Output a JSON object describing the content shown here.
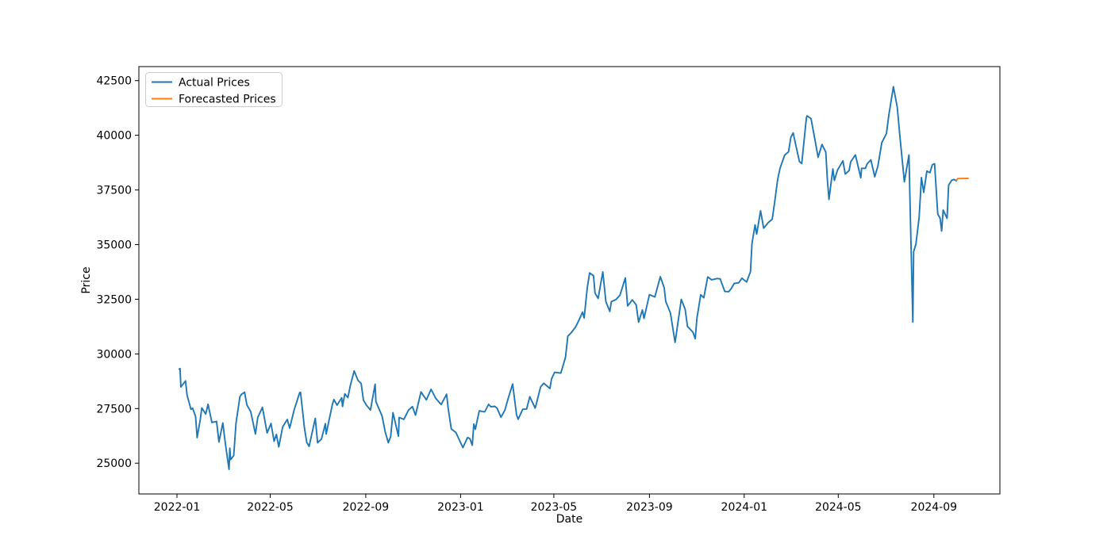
{
  "chart_data": {
    "type": "line",
    "title": "",
    "xlabel": "Date",
    "ylabel": "Price",
    "grid": false,
    "x_tick_labels": [
      "2022-01",
      "2022-05",
      "2022-09",
      "2023-01",
      "2023-05",
      "2023-09",
      "2024-01",
      "2024-05",
      "2024-09"
    ],
    "x_tick_dates": [
      "2022-01-01",
      "2022-05-01",
      "2022-09-01",
      "2023-01-01",
      "2023-05-01",
      "2023-09-01",
      "2024-01-01",
      "2024-05-01",
      "2024-09-01"
    ],
    "y_ticks": [
      25000,
      27500,
      30000,
      32500,
      35000,
      37500,
      40000,
      42500
    ],
    "xlim": [
      "2021-11-13",
      "2024-11-25"
    ],
    "ylim": [
      23594,
      43142
    ],
    "legend": {
      "position": "upper-left",
      "entries": [
        {
          "label": "Actual Prices",
          "color": "#1f77b4"
        },
        {
          "label": "Forecasted Prices",
          "color": "#ff7f0e"
        }
      ]
    },
    "series": [
      {
        "name": "Actual Prices",
        "color": "#1f77b4",
        "points": [
          [
            "2022-01-04",
            29301
          ],
          [
            "2022-01-05",
            29332
          ],
          [
            "2022-01-06",
            28488
          ],
          [
            "2022-01-12",
            28766
          ],
          [
            "2022-01-14",
            28124
          ],
          [
            "2022-01-19",
            27467
          ],
          [
            "2022-01-21",
            27522
          ],
          [
            "2022-01-25",
            27131
          ],
          [
            "2022-01-27",
            26170
          ],
          [
            "2022-01-31",
            27002
          ],
          [
            "2022-02-02",
            27533
          ],
          [
            "2022-02-07",
            27248
          ],
          [
            "2022-02-10",
            27696
          ],
          [
            "2022-02-15",
            26865
          ],
          [
            "2022-02-21",
            26911
          ],
          [
            "2022-02-24",
            25971
          ],
          [
            "2022-03-01",
            26845
          ],
          [
            "2022-03-04",
            25985
          ],
          [
            "2022-03-07",
            25221
          ],
          [
            "2022-03-09",
            24718
          ],
          [
            "2022-03-10",
            25690
          ],
          [
            "2022-03-11",
            25163
          ],
          [
            "2022-03-15",
            25346
          ],
          [
            "2022-03-18",
            26827
          ],
          [
            "2022-03-23",
            28040
          ],
          [
            "2022-03-25",
            28150
          ],
          [
            "2022-03-29",
            28252
          ],
          [
            "2022-04-01",
            27666
          ],
          [
            "2022-04-06",
            27350
          ],
          [
            "2022-04-12",
            26335
          ],
          [
            "2022-04-15",
            27093
          ],
          [
            "2022-04-21",
            27553
          ],
          [
            "2022-04-27",
            26387
          ],
          [
            "2022-05-02",
            26819
          ],
          [
            "2022-05-06",
            26003
          ],
          [
            "2022-05-09",
            26319
          ],
          [
            "2022-05-12",
            25749
          ],
          [
            "2022-05-17",
            26659
          ],
          [
            "2022-05-23",
            27002
          ],
          [
            "2022-05-26",
            26605
          ],
          [
            "2022-06-01",
            27458
          ],
          [
            "2022-06-08",
            28234
          ],
          [
            "2022-06-09",
            28247
          ],
          [
            "2022-06-14",
            26630
          ],
          [
            "2022-06-17",
            25963
          ],
          [
            "2022-06-20",
            25771
          ],
          [
            "2022-06-28",
            27049
          ],
          [
            "2022-07-01",
            25935
          ],
          [
            "2022-07-06",
            26107
          ],
          [
            "2022-07-11",
            26812
          ],
          [
            "2022-07-12",
            26336
          ],
          [
            "2022-07-20",
            27680
          ],
          [
            "2022-07-22",
            27914
          ],
          [
            "2022-07-26",
            27655
          ],
          [
            "2022-08-01",
            27993
          ],
          [
            "2022-08-02",
            27594
          ],
          [
            "2022-08-05",
            28175
          ],
          [
            "2022-08-09",
            27999
          ],
          [
            "2022-08-12",
            28546
          ],
          [
            "2022-08-17",
            29222
          ],
          [
            "2022-08-22",
            28794
          ],
          [
            "2022-08-26",
            28641
          ],
          [
            "2022-08-29",
            27878
          ],
          [
            "2022-09-02",
            27650
          ],
          [
            "2022-09-07",
            27430
          ],
          [
            "2022-09-13",
            28614
          ],
          [
            "2022-09-14",
            27818
          ],
          [
            "2022-09-22",
            27153
          ],
          [
            "2022-09-26",
            26432
          ],
          [
            "2022-09-30",
            25937
          ],
          [
            "2022-10-03",
            26216
          ],
          [
            "2022-10-06",
            27311
          ],
          [
            "2022-10-13",
            26237
          ],
          [
            "2022-10-14",
            27091
          ],
          [
            "2022-10-20",
            27006
          ],
          [
            "2022-10-26",
            27431
          ],
          [
            "2022-10-31",
            27587
          ],
          [
            "2022-11-04",
            27200
          ],
          [
            "2022-11-11",
            28263
          ],
          [
            "2022-11-18",
            27900
          ],
          [
            "2022-11-24",
            28383
          ],
          [
            "2022-11-30",
            27969
          ],
          [
            "2022-12-07",
            27686
          ],
          [
            "2022-12-14",
            28156
          ],
          [
            "2022-12-16",
            27527
          ],
          [
            "2022-12-20",
            26568
          ],
          [
            "2022-12-26",
            26406
          ],
          [
            "2022-12-30",
            26095
          ],
          [
            "2023-01-04",
            25717
          ],
          [
            "2023-01-10",
            26176
          ],
          [
            "2023-01-13",
            26119
          ],
          [
            "2023-01-16",
            25822
          ],
          [
            "2023-01-18",
            26791
          ],
          [
            "2023-01-20",
            26553
          ],
          [
            "2023-01-25",
            27395
          ],
          [
            "2023-02-01",
            27346
          ],
          [
            "2023-02-06",
            27693
          ],
          [
            "2023-02-09",
            27584
          ],
          [
            "2023-02-14",
            27603
          ],
          [
            "2023-02-17",
            27513
          ],
          [
            "2023-02-22",
            27104
          ],
          [
            "2023-02-27",
            27424
          ],
          [
            "2023-03-03",
            27927
          ],
          [
            "2023-03-09",
            28623
          ],
          [
            "2023-03-14",
            27222
          ],
          [
            "2023-03-16",
            27010
          ],
          [
            "2023-03-22",
            27466
          ],
          [
            "2023-03-27",
            27477
          ],
          [
            "2023-03-31",
            28041
          ],
          [
            "2023-04-07",
            27518
          ],
          [
            "2023-04-14",
            28493
          ],
          [
            "2023-04-18",
            28658
          ],
          [
            "2023-04-26",
            28416
          ],
          [
            "2023-04-28",
            28856
          ],
          [
            "2023-05-02",
            29158
          ],
          [
            "2023-05-10",
            29122
          ],
          [
            "2023-05-16",
            29843
          ],
          [
            "2023-05-19",
            30808
          ],
          [
            "2023-05-23",
            30957
          ],
          [
            "2023-05-29",
            31233
          ],
          [
            "2023-06-02",
            31524
          ],
          [
            "2023-06-07",
            31914
          ],
          [
            "2023-06-09",
            31641
          ],
          [
            "2023-06-13",
            33018
          ],
          [
            "2023-06-16",
            33706
          ],
          [
            "2023-06-21",
            33575
          ],
          [
            "2023-06-23",
            32781
          ],
          [
            "2023-06-27",
            32538
          ],
          [
            "2023-07-03",
            33753
          ],
          [
            "2023-07-07",
            32388
          ],
          [
            "2023-07-12",
            31943
          ],
          [
            "2023-07-14",
            32391
          ],
          [
            "2023-07-20",
            32490
          ],
          [
            "2023-07-25",
            32682
          ],
          [
            "2023-08-01",
            33476
          ],
          [
            "2023-08-04",
            32193
          ],
          [
            "2023-08-10",
            32474
          ],
          [
            "2023-08-15",
            32239
          ],
          [
            "2023-08-18",
            31451
          ],
          [
            "2023-08-23",
            32010
          ],
          [
            "2023-08-25",
            31624
          ],
          [
            "2023-09-01",
            32711
          ],
          [
            "2023-09-08",
            32607
          ],
          [
            "2023-09-15",
            33533
          ],
          [
            "2023-09-20",
            33024
          ],
          [
            "2023-09-22",
            32402
          ],
          [
            "2023-09-28",
            31872
          ],
          [
            "2023-10-04",
            30526
          ],
          [
            "2023-10-06",
            30995
          ],
          [
            "2023-10-12",
            32494
          ],
          [
            "2023-10-17",
            32040
          ],
          [
            "2023-10-20",
            31259
          ],
          [
            "2023-10-27",
            30992
          ],
          [
            "2023-10-30",
            30696
          ],
          [
            "2023-11-01",
            31602
          ],
          [
            "2023-11-06",
            32708
          ],
          [
            "2023-11-10",
            32568
          ],
          [
            "2023-11-15",
            33520
          ],
          [
            "2023-11-20",
            33388
          ],
          [
            "2023-11-27",
            33448
          ],
          [
            "2023-12-01",
            33432
          ],
          [
            "2023-12-07",
            32858
          ],
          [
            "2023-12-12",
            32844
          ],
          [
            "2023-12-15",
            32971
          ],
          [
            "2023-12-19",
            33219
          ],
          [
            "2023-12-25",
            33254
          ],
          [
            "2023-12-29",
            33464
          ],
          [
            "2024-01-04",
            33288
          ],
          [
            "2024-01-09",
            33763
          ],
          [
            "2024-01-11",
            35050
          ],
          [
            "2024-01-15",
            35901
          ],
          [
            "2024-01-17",
            35478
          ],
          [
            "2024-01-22",
            36547
          ],
          [
            "2024-01-26",
            35751
          ],
          [
            "2024-02-01",
            36011
          ],
          [
            "2024-02-06",
            36160
          ],
          [
            "2024-02-09",
            36897
          ],
          [
            "2024-02-13",
            37964
          ],
          [
            "2024-02-16",
            38487
          ],
          [
            "2024-02-22",
            39098
          ],
          [
            "2024-02-27",
            39239
          ],
          [
            "2024-03-01",
            39911
          ],
          [
            "2024-03-04",
            40109
          ],
          [
            "2024-03-07",
            39599
          ],
          [
            "2024-03-12",
            38798
          ],
          [
            "2024-03-15",
            38708
          ],
          [
            "2024-03-21",
            40815
          ],
          [
            "2024-03-22",
            40888
          ],
          [
            "2024-03-27",
            40762
          ],
          [
            "2024-04-01",
            39803
          ],
          [
            "2024-04-05",
            38992
          ],
          [
            "2024-04-10",
            39581
          ],
          [
            "2024-04-15",
            39233
          ],
          [
            "2024-04-17",
            37962
          ],
          [
            "2024-04-19",
            37068
          ],
          [
            "2024-04-24",
            38460
          ],
          [
            "2024-04-26",
            37935
          ],
          [
            "2024-04-30",
            38406
          ],
          [
            "2024-05-07",
            38835
          ],
          [
            "2024-05-10",
            38229
          ],
          [
            "2024-05-15",
            38385
          ],
          [
            "2024-05-17",
            38787
          ],
          [
            "2024-05-23",
            39103
          ],
          [
            "2024-05-30",
            38054
          ],
          [
            "2024-05-31",
            38488
          ],
          [
            "2024-06-05",
            38490
          ],
          [
            "2024-06-07",
            38684
          ],
          [
            "2024-06-12",
            38877
          ],
          [
            "2024-06-17",
            38102
          ],
          [
            "2024-06-21",
            38596
          ],
          [
            "2024-06-26",
            39667
          ],
          [
            "2024-07-02",
            40075
          ],
          [
            "2024-07-05",
            40912
          ],
          [
            "2024-07-11",
            42224
          ],
          [
            "2024-07-16",
            41275
          ],
          [
            "2024-07-19",
            40064
          ],
          [
            "2024-07-25",
            37870
          ],
          [
            "2024-07-31",
            39102
          ],
          [
            "2024-08-02",
            35910
          ],
          [
            "2024-08-05",
            31458
          ],
          [
            "2024-08-06",
            34675
          ],
          [
            "2024-08-09",
            35025
          ],
          [
            "2024-08-13",
            36232
          ],
          [
            "2024-08-16",
            38063
          ],
          [
            "2024-08-19",
            37388
          ],
          [
            "2024-08-23",
            38364
          ],
          [
            "2024-08-27",
            38288
          ],
          [
            "2024-08-30",
            38648
          ],
          [
            "2024-09-02",
            38701
          ],
          [
            "2024-09-06",
            36391
          ],
          [
            "2024-09-09",
            36216
          ],
          [
            "2024-09-11",
            35620
          ],
          [
            "2024-09-13",
            36582
          ],
          [
            "2024-09-18",
            36203
          ],
          [
            "2024-09-20",
            37724
          ],
          [
            "2024-09-24",
            37940
          ],
          [
            "2024-09-27",
            37980
          ],
          [
            "2024-09-30",
            37920
          ]
        ]
      },
      {
        "name": "Forecasted Prices",
        "color": "#ff7f0e",
        "points": [
          [
            "2024-09-30",
            37950
          ],
          [
            "2024-10-02",
            38020
          ],
          [
            "2024-10-15",
            38030
          ]
        ]
      }
    ]
  }
}
